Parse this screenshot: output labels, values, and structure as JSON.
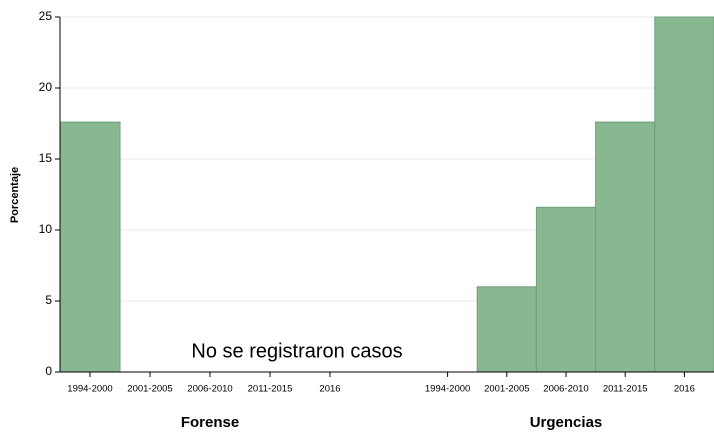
{
  "chart_data": {
    "type": "bar",
    "ylabel": "Porcentaje",
    "annotation": "No se registraron casos",
    "color": "#88b88f",
    "edge_color": "#6f9f78",
    "ylim": [
      0,
      25
    ],
    "yticks": [
      0,
      5,
      10,
      15,
      20,
      25
    ],
    "grid": true,
    "panels": [
      {
        "name": "Forense",
        "categories": [
          "1994-2000",
          "2001-2005",
          "2006-2010",
          "2011-2015",
          "2016"
        ],
        "values": [
          17.6,
          0,
          0,
          0,
          0
        ]
      },
      {
        "name": "Urgencias",
        "categories": [
          "1994-2000",
          "2001-2005",
          "2006-2010",
          "2011-2015",
          "2016"
        ],
        "values": [
          0,
          6,
          11.6,
          17.6,
          25
        ]
      }
    ]
  }
}
